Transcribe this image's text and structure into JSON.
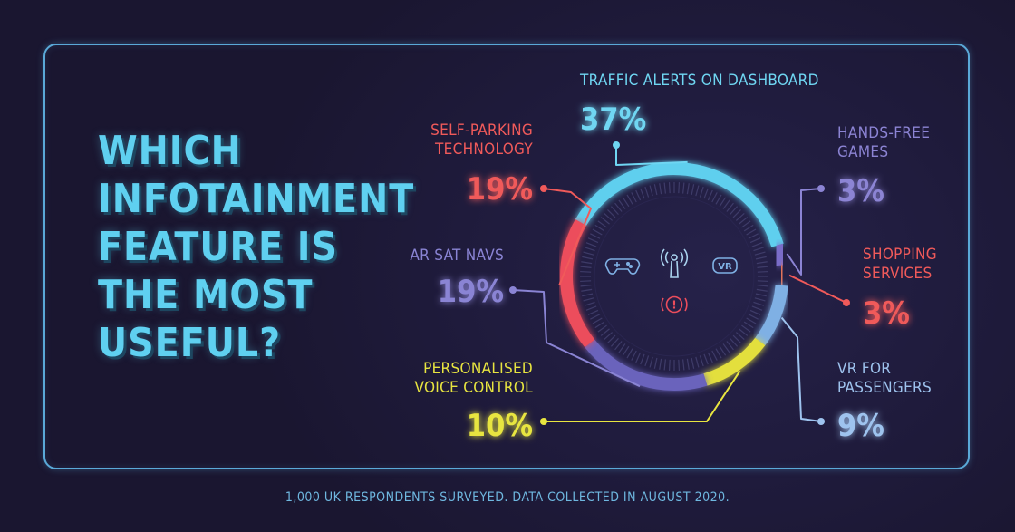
{
  "title_lines": [
    "WHICH",
    "INFOTAINMENT",
    "FEATURE IS",
    "THE MOST",
    "USEFUL?"
  ],
  "footnote": "1,000 UK RESPONDENTS SURVEYED. DATA COLLECTED IN AUGUST 2020.",
  "colors": {
    "background": "#1a1630",
    "frame": "#5aa9d8",
    "title": "#5fd0f0"
  },
  "center_icons": [
    "gamepad-icon",
    "voice-antenna-icon",
    "vr-headset-icon",
    "alert-icon"
  ],
  "center_icon_labels": {
    "vr": "VR",
    "alert": "!"
  },
  "chart_data": {
    "type": "pie",
    "style": "donut",
    "categories": [
      "TRAFFIC ALERTS ON DASHBOARD",
      "HANDS-FREE GAMES",
      "SHOPPING SERVICES",
      "VR FOR PASSENGERS",
      "PERSONALISED VOICE CONTROL",
      "AR SAT NAVS",
      "SELF-PARKING TECHNOLOGY"
    ],
    "labels": [
      [
        "TRAFFIC ALERTS ON DASHBOARD"
      ],
      [
        "HANDS-FREE",
        "GAMES"
      ],
      [
        "SHOPPING",
        "SERVICES"
      ],
      [
        "VR FOR",
        "PASSENGERS"
      ],
      [
        "PERSONALISED",
        "VOICE CONTROL"
      ],
      [
        "AR SAT NAVS"
      ],
      [
        "SELF-PARKING",
        "TECHNOLOGY"
      ]
    ],
    "values": [
      37,
      3,
      3,
      9,
      10,
      19,
      19
    ],
    "value_labels": [
      "37%",
      "3%",
      "3%",
      "9%",
      "10%",
      "19%",
      "19%"
    ],
    "colors": [
      "#5fcfee",
      "#7a6cc8",
      "#e2735a",
      "#7fb0e4",
      "#e3df3c",
      "#6a64bc",
      "#ec4d5c"
    ],
    "label_colors": [
      "#6fd6f2",
      "#8c84d4",
      "#f05a5a",
      "#9ec3ee",
      "#e8e540",
      "#8a84d4",
      "#f05a5a"
    ],
    "start_angle_deg": -60
  }
}
